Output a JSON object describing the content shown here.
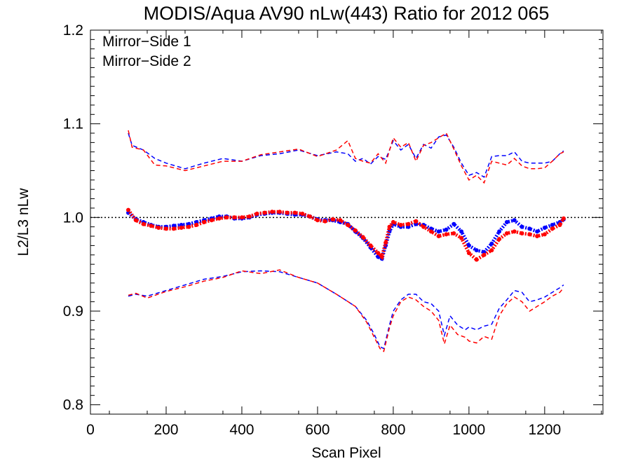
{
  "chart_data": {
    "type": "line",
    "title": "MODIS/Aqua AV90 nLw(443) Ratio for 2012 065",
    "xlabel": "Scan Pixel",
    "ylabel": "L2/L3 nLw",
    "xlim": [
      0,
      1354
    ],
    "ylim": [
      0.79,
      1.2
    ],
    "x_ticks": [
      0,
      200,
      400,
      600,
      800,
      1000,
      1200
    ],
    "x_tick_labels": [
      "0",
      "200",
      "400",
      "600",
      "800",
      "1000",
      "1200"
    ],
    "y_ticks": [
      0.8,
      0.9,
      1.0,
      1.1,
      1.2
    ],
    "y_tick_labels": [
      "0.8",
      "0.9",
      "1.0",
      "1.1",
      "1.2"
    ],
    "reference_line": 1.0,
    "grid": false,
    "legend": {
      "placement": "top-left",
      "entries": [
        {
          "label": "Mirror−Side 1",
          "color": "#0000ff"
        },
        {
          "label": "Mirror−Side 2",
          "color": "#ff0000"
        }
      ]
    },
    "series": [
      {
        "name": "Mirror−Side 1",
        "color": "#0000ff",
        "mean": {
          "x": [
            100,
            120,
            140,
            160,
            180,
            200,
            220,
            240,
            260,
            280,
            300,
            320,
            340,
            360,
            380,
            400,
            420,
            440,
            460,
            480,
            500,
            520,
            540,
            560,
            580,
            600,
            620,
            640,
            660,
            680,
            700,
            720,
            740,
            760,
            770,
            780,
            790,
            800,
            820,
            840,
            860,
            880,
            900,
            920,
            940,
            960,
            980,
            1000,
            1020,
            1040,
            1060,
            1080,
            1100,
            1120,
            1140,
            1160,
            1180,
            1200,
            1220,
            1240,
            1250
          ],
          "y": [
            1.005,
            0.998,
            0.995,
            0.992,
            0.99,
            0.99,
            0.991,
            0.992,
            0.993,
            0.995,
            0.997,
            0.999,
            1.001,
            1.001,
            0.999,
            0.999,
            1.0,
            1.003,
            1.004,
            1.005,
            1.005,
            1.004,
            1.003,
            1.003,
            1.001,
            0.998,
            0.997,
            0.997,
            0.995,
            0.993,
            0.985,
            0.978,
            0.968,
            0.958,
            0.956,
            0.97,
            0.985,
            0.993,
            0.99,
            0.99,
            0.993,
            0.992,
            0.988,
            0.985,
            0.987,
            0.993,
            0.985,
            0.97,
            0.965,
            0.963,
            0.972,
            0.985,
            0.995,
            0.997,
            0.99,
            0.988,
            0.985,
            0.989,
            0.992,
            0.995,
            0.998
          ]
        },
        "upper": {
          "x": [
            100,
            110,
            140,
            170,
            200,
            250,
            300,
            350,
            400,
            450,
            500,
            550,
            600,
            650,
            680,
            700,
            720,
            740,
            760,
            780,
            800,
            820,
            840,
            860,
            880,
            900,
            920,
            940,
            960,
            980,
            1000,
            1020,
            1040,
            1060,
            1080,
            1100,
            1120,
            1140,
            1160,
            1180,
            1200,
            1220,
            1240,
            1250
          ],
          "y": [
            1.09,
            1.077,
            1.072,
            1.063,
            1.058,
            1.052,
            1.058,
            1.063,
            1.06,
            1.066,
            1.068,
            1.072,
            1.066,
            1.07,
            1.068,
            1.06,
            1.063,
            1.057,
            1.065,
            1.062,
            1.082,
            1.072,
            1.078,
            1.063,
            1.078,
            1.074,
            1.086,
            1.088,
            1.075,
            1.058,
            1.045,
            1.048,
            1.043,
            1.065,
            1.066,
            1.066,
            1.07,
            1.06,
            1.058,
            1.058,
            1.058,
            1.06,
            1.068,
            1.071
          ]
        },
        "lower": {
          "x": [
            100,
            120,
            150,
            200,
            250,
            300,
            350,
            400,
            450,
            500,
            550,
            600,
            650,
            700,
            730,
            750,
            765,
            775,
            790,
            800,
            820,
            840,
            860,
            880,
            900,
            920,
            935,
            950,
            970,
            990,
            1000,
            1020,
            1040,
            1060,
            1080,
            1100,
            1120,
            1140,
            1160,
            1180,
            1200,
            1220,
            1240,
            1250
          ],
          "y": [
            0.916,
            0.918,
            0.916,
            0.922,
            0.928,
            0.934,
            0.937,
            0.942,
            0.943,
            0.942,
            0.936,
            0.93,
            0.918,
            0.905,
            0.89,
            0.875,
            0.862,
            0.86,
            0.885,
            0.9,
            0.912,
            0.918,
            0.918,
            0.91,
            0.908,
            0.9,
            0.874,
            0.895,
            0.885,
            0.88,
            0.883,
            0.88,
            0.884,
            0.886,
            0.903,
            0.912,
            0.922,
            0.92,
            0.91,
            0.912,
            0.915,
            0.92,
            0.925,
            0.928
          ]
        }
      },
      {
        "name": "Mirror−Side 2",
        "color": "#ff0000",
        "mean": {
          "x": [
            100,
            120,
            140,
            160,
            180,
            200,
            220,
            240,
            260,
            280,
            300,
            320,
            340,
            360,
            380,
            400,
            420,
            440,
            460,
            480,
            500,
            520,
            540,
            560,
            580,
            600,
            620,
            640,
            660,
            680,
            700,
            720,
            740,
            760,
            770,
            780,
            790,
            800,
            820,
            840,
            860,
            880,
            900,
            920,
            940,
            960,
            980,
            1000,
            1020,
            1040,
            1060,
            1080,
            1100,
            1120,
            1140,
            1160,
            1180,
            1200,
            1220,
            1240,
            1250
          ],
          "y": [
            1.008,
            0.997,
            0.993,
            0.991,
            0.989,
            0.988,
            0.988,
            0.989,
            0.99,
            0.992,
            0.995,
            0.997,
            0.999,
            1.0,
            1.0,
            1.0,
            1.001,
            1.004,
            1.005,
            1.006,
            1.006,
            1.005,
            1.005,
            1.004,
            1.001,
            0.997,
            0.996,
            0.998,
            0.997,
            0.992,
            0.986,
            0.979,
            0.97,
            0.962,
            0.958,
            0.973,
            0.99,
            0.995,
            0.992,
            0.993,
            0.996,
            0.99,
            0.985,
            0.98,
            0.982,
            0.983,
            0.978,
            0.962,
            0.955,
            0.96,
            0.965,
            0.977,
            0.983,
            0.985,
            0.983,
            0.982,
            0.98,
            0.982,
            0.988,
            0.992,
            0.999
          ]
        },
        "upper": {
          "x": [
            100,
            110,
            140,
            170,
            200,
            250,
            300,
            350,
            400,
            450,
            500,
            550,
            600,
            650,
            680,
            700,
            720,
            740,
            760,
            780,
            800,
            820,
            840,
            860,
            880,
            900,
            920,
            940,
            960,
            980,
            1000,
            1020,
            1040,
            1060,
            1080,
            1100,
            1120,
            1140,
            1160,
            1180,
            1200,
            1220,
            1240,
            1250
          ],
          "y": [
            1.093,
            1.075,
            1.072,
            1.056,
            1.055,
            1.05,
            1.055,
            1.06,
            1.06,
            1.067,
            1.07,
            1.073,
            1.065,
            1.072,
            1.082,
            1.063,
            1.06,
            1.058,
            1.068,
            1.058,
            1.085,
            1.075,
            1.08,
            1.06,
            1.077,
            1.08,
            1.085,
            1.09,
            1.073,
            1.055,
            1.04,
            1.045,
            1.037,
            1.06,
            1.058,
            1.056,
            1.063,
            1.055,
            1.052,
            1.052,
            1.053,
            1.06,
            1.068,
            1.07
          ]
        },
        "lower": {
          "x": [
            100,
            120,
            150,
            200,
            250,
            300,
            350,
            400,
            450,
            500,
            550,
            600,
            650,
            700,
            730,
            750,
            765,
            775,
            790,
            800,
            820,
            840,
            860,
            880,
            900,
            920,
            935,
            950,
            970,
            990,
            1000,
            1020,
            1040,
            1060,
            1080,
            1100,
            1120,
            1140,
            1160,
            1180,
            1200,
            1220,
            1240,
            1250
          ],
          "y": [
            0.917,
            0.919,
            0.914,
            0.921,
            0.926,
            0.932,
            0.936,
            0.943,
            0.94,
            0.944,
            0.936,
            0.93,
            0.918,
            0.905,
            0.888,
            0.872,
            0.86,
            0.857,
            0.882,
            0.895,
            0.91,
            0.915,
            0.912,
            0.905,
            0.9,
            0.89,
            0.865,
            0.885,
            0.875,
            0.872,
            0.868,
            0.866,
            0.873,
            0.87,
            0.895,
            0.908,
            0.915,
            0.91,
            0.9,
            0.905,
            0.91,
            0.916,
            0.92,
            0.925
          ]
        }
      }
    ]
  }
}
